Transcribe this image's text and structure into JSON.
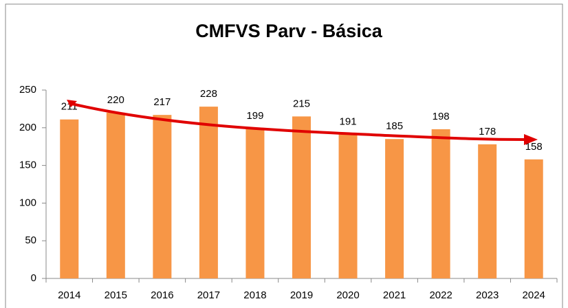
{
  "chart_data": {
    "type": "bar",
    "title": "CMFVS Parv - Básica",
    "categories": [
      "2014",
      "2015",
      "2016",
      "2017",
      "2018",
      "2019",
      "2020",
      "2021",
      "2022",
      "2023",
      "2024"
    ],
    "values": [
      211,
      220,
      217,
      228,
      199,
      215,
      191,
      185,
      198,
      178,
      158
    ],
    "color": "#f79646",
    "ylim": [
      0,
      250
    ],
    "yticks": [
      0,
      50,
      100,
      150,
      200,
      250
    ],
    "grid": false
  }
}
